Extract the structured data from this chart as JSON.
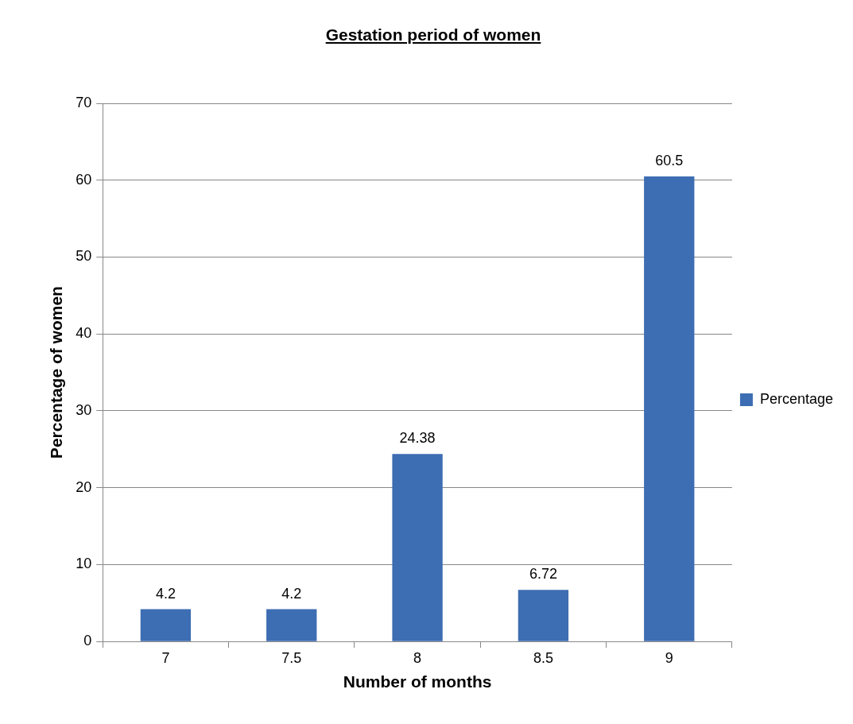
{
  "chart_data": {
    "type": "bar",
    "title": "Gestation period of women",
    "xlabel": "Number of months",
    "ylabel": "Percentage of women",
    "categories": [
      "7",
      "7.5",
      "8",
      "8.5",
      "9"
    ],
    "series": [
      {
        "name": "Percentage",
        "color": "#3d6db2",
        "values": [
          4.2,
          4.2,
          24.38,
          6.72,
          60.5
        ]
      }
    ],
    "ylim": [
      0,
      70
    ],
    "yticks": [
      0,
      10,
      20,
      30,
      40,
      50,
      60,
      70
    ],
    "grid": "y",
    "legend": "right",
    "data_labels": true
  }
}
